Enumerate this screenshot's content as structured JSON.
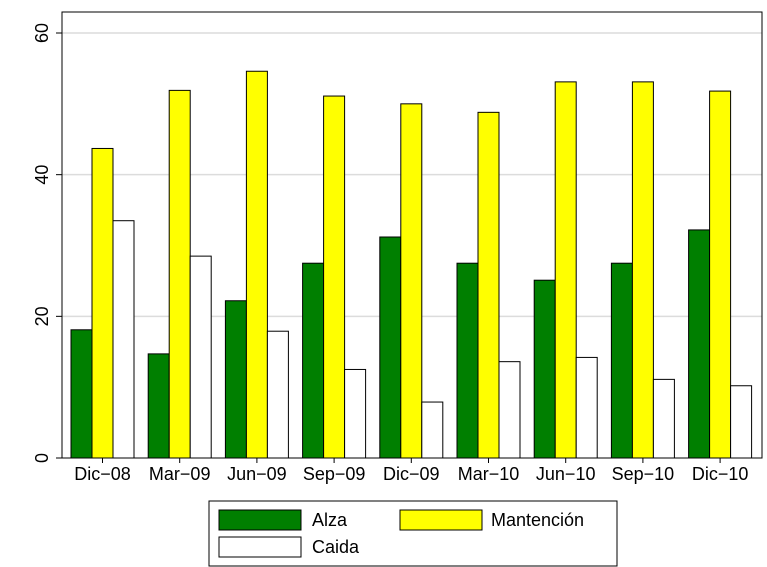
{
  "chart_data": {
    "type": "bar",
    "categories": [
      "Dic−08",
      "Mar−09",
      "Jun−09",
      "Sep−09",
      "Dic−09",
      "Mar−10",
      "Jun−10",
      "Sep−10",
      "Dic−10"
    ],
    "series": [
      {
        "name": "Alza",
        "color": "#007f00",
        "values": [
          18.1,
          14.7,
          22.2,
          27.5,
          31.2,
          27.5,
          25.1,
          27.5,
          32.2
        ]
      },
      {
        "name": "Mantención",
        "color": "#ffff00",
        "values": [
          43.7,
          51.9,
          54.6,
          51.1,
          50.0,
          48.8,
          53.1,
          53.1,
          51.8
        ]
      },
      {
        "name": "Caida",
        "color": "#ffffff",
        "values": [
          33.5,
          28.5,
          17.9,
          12.5,
          7.9,
          13.6,
          14.2,
          11.1,
          10.2
        ]
      }
    ],
    "yticks": [
      "0",
      "20",
      "40",
      "60"
    ],
    "ylim": [
      0,
      60
    ],
    "grid": true,
    "legend": "bottom"
  }
}
